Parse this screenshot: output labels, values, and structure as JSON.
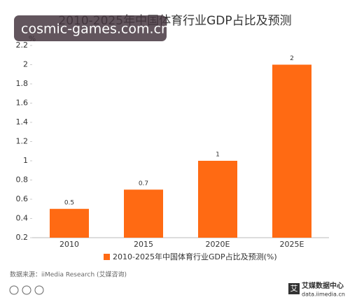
{
  "chart_data": {
    "type": "bar",
    "title": "2010-2025年中国体育行业GDP占比及预测",
    "y_label": "%",
    "categories": [
      "2010",
      "2015",
      "2020E",
      "2025E"
    ],
    "series": [
      {
        "name": "2010-2025年中国体育行业GDP占比及预测(%)",
        "color": "#ff6a13",
        "values": [
          0.5,
          0.7,
          1,
          2
        ]
      }
    ],
    "ylim": [
      0.2,
      2.2
    ],
    "yticks": [
      0.2,
      0.4,
      0.6,
      0.8,
      1,
      1.2,
      1.4,
      1.6,
      1.8,
      2,
      2.2
    ],
    "grid": false,
    "legend": "bottom",
    "source": "数据来源：iiMedia Research (艾媒咨询)"
  },
  "watermark": "cosmic-games.com.cn",
  "logo": {
    "mark": "艾",
    "text": "艾媒数据中心",
    "url": "data.iimedia.cn"
  }
}
